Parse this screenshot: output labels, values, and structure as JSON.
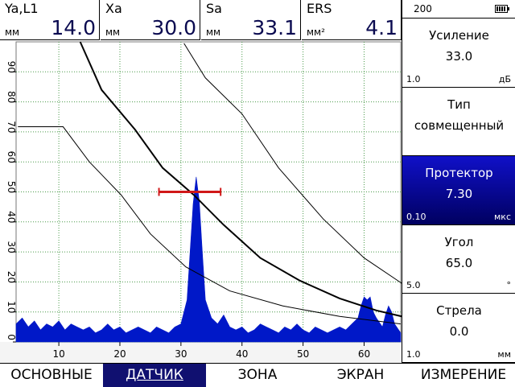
{
  "readouts": [
    {
      "label": "Ya,L1",
      "unit": "мм",
      "value": "14.0"
    },
    {
      "label": "Xa",
      "unit": "мм",
      "value": "30.0"
    },
    {
      "label": "Sa",
      "unit": "мм",
      "value": "33.1"
    },
    {
      "label": "ERS",
      "unit": "мм²",
      "value": "4.1"
    }
  ],
  "counter": "200",
  "params": [
    {
      "name": "Усиление",
      "value": "33.0",
      "step": "1.0",
      "unit": "дБ"
    },
    {
      "name": "Тип",
      "value": "совмещенный"
    },
    {
      "name": "Протектор",
      "value": "7.30",
      "step": "0.10",
      "unit": "мкс",
      "selected": true
    },
    {
      "name": "Угол",
      "value": "65.0",
      "step": "5.0",
      "unit": "°"
    },
    {
      "name": "Стрела",
      "value": "0.0",
      "step": "1.0",
      "unit": "мм"
    }
  ],
  "tabs": [
    "ОСНОВНЫЕ",
    "ДАТЧИК",
    "ЗОНА",
    "ЭКРАН",
    "ИЗМЕРЕНИЕ"
  ],
  "active_tab": 1,
  "chart_data": {
    "type": "ascan",
    "xlim": [
      3,
      66
    ],
    "ylim": [
      0,
      100
    ],
    "xticks": [
      10,
      20,
      30,
      40,
      50,
      60
    ],
    "yticks": [
      0,
      10,
      20,
      30,
      40,
      50,
      60,
      70,
      80,
      90
    ],
    "grid": true,
    "signal": {
      "color": "#0018c8",
      "x": [
        3,
        4,
        5,
        6,
        7,
        8,
        9,
        10,
        11,
        12,
        13,
        14,
        15,
        16,
        17,
        18,
        19,
        20,
        21,
        22,
        23,
        24,
        25,
        26,
        27,
        28,
        29,
        30,
        31,
        31.5,
        32,
        32.5,
        33,
        33.5,
        34,
        35,
        36,
        37,
        38,
        39,
        40,
        41,
        42,
        43,
        44,
        45,
        46,
        47,
        48,
        49,
        50,
        51,
        52,
        53,
        54,
        55,
        56,
        57,
        58,
        59,
        59.5,
        60,
        60.5,
        61,
        61.5,
        62,
        63,
        63.5,
        64,
        64.5,
        65,
        66
      ],
      "values": [
        6,
        8,
        5,
        7,
        4,
        6,
        5,
        7,
        4,
        6,
        5,
        4,
        5,
        3,
        4,
        6,
        4,
        5,
        3,
        4,
        5,
        4,
        3,
        5,
        4,
        3,
        5,
        6,
        14,
        30,
        46,
        55,
        47,
        30,
        14,
        8,
        6,
        9,
        5,
        4,
        5,
        3,
        4,
        6,
        5,
        4,
        3,
        5,
        4,
        6,
        4,
        3,
        5,
        4,
        3,
        4,
        5,
        4,
        6,
        8,
        12,
        15,
        14,
        15,
        10,
        8,
        5,
        9,
        12,
        10,
        6,
        3
      ]
    },
    "series": [
      {
        "color": "#000000",
        "width": 2,
        "x": [
          13.5,
          17,
          22.5,
          27,
          32.1,
          37,
          43,
          49.4,
          56,
          62,
          66.2
        ],
        "values": [
          100,
          84,
          70.7,
          58,
          49,
          39,
          28,
          20.5,
          14.5,
          10.5,
          8.5
        ]
      },
      {
        "color": "#000000",
        "width": 1,
        "x": [
          30.5,
          34,
          40,
          46,
          53.3,
          60,
          66.2
        ],
        "values": [
          99.5,
          88,
          76,
          58,
          41,
          28,
          19.5
        ]
      },
      {
        "color": "#000000",
        "width": 1,
        "x": [
          3.3,
          10.7,
          15,
          20.2,
          25,
          30.8,
          38,
          46.7,
          56,
          66
        ],
        "values": [
          71.7,
          71.7,
          60,
          49,
          36,
          25,
          17,
          12,
          8.5,
          6
        ]
      }
    ],
    "gate": {
      "color": "#d01818",
      "x": [
        26.4,
        36.5
      ],
      "level": 50
    }
  }
}
